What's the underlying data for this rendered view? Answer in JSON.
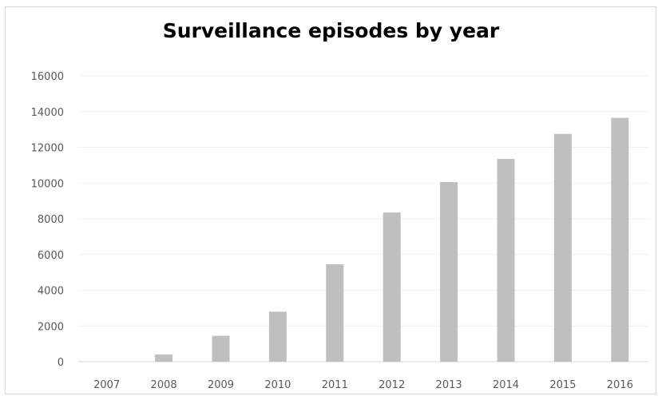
{
  "chart_data": {
    "type": "bar",
    "title": "Surveillance episodes by year",
    "xlabel": "",
    "ylabel": "",
    "categories": [
      "2007",
      "2008",
      "2009",
      "2010",
      "2011",
      "2012",
      "2013",
      "2014",
      "2015",
      "2016"
    ],
    "values": [
      0,
      400,
      1450,
      2800,
      5450,
      8350,
      10050,
      11350,
      12750,
      13650
    ],
    "ylim": [
      0,
      16000
    ],
    "yticks": [
      0,
      2000,
      4000,
      6000,
      8000,
      10000,
      12000,
      14000,
      16000
    ],
    "ytick_labels": [
      "0",
      "2000",
      "4000",
      "6000",
      "8000",
      "10000",
      "12000",
      "14000",
      "16000"
    ],
    "grid": true,
    "legend": "none",
    "colors": {
      "bar": "#bfbfbf",
      "gridline": "#f0f0f0",
      "axis": "#d9d9d9",
      "tick_text": "#595959",
      "title_text": "#000000"
    }
  }
}
